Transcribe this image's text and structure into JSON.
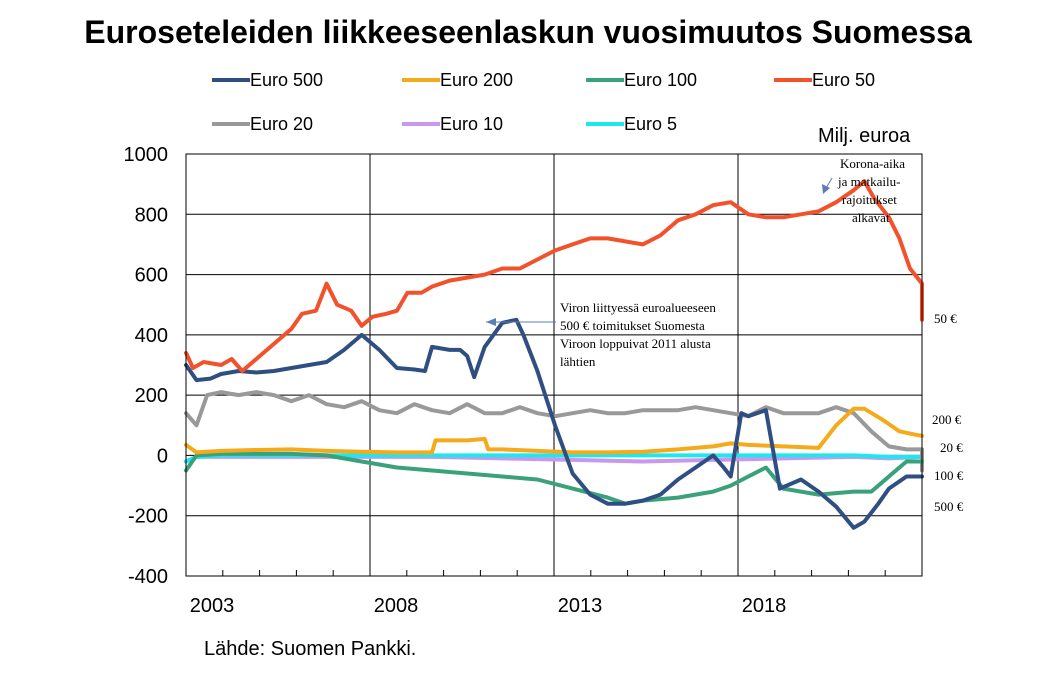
{
  "title": "Euroseteleiden liikkeeseenlaskun vuosimuutos Suomessa",
  "unit_label": "Milj. euroa",
  "source": "Lähde: Suomen Pankki.",
  "annotations": {
    "viro": [
      "Viron liittyessä euroalueeseen",
      "500 € toimitukset Suomesta",
      "Viroon loppuivat 2011 alusta",
      "lähtien"
    ],
    "korona": [
      "Korona-aika",
      "ja matkailu-",
      "rajoitukset",
      "alkavat"
    ]
  },
  "series_end_labels": [
    "50 €",
    "200 €",
    "20 €",
    "100 €",
    "500 €"
  ],
  "chart_data": {
    "type": "line",
    "ylim": [
      -400,
      1000
    ],
    "yticks": [
      -400,
      -200,
      0,
      200,
      400,
      600,
      800,
      1000
    ],
    "xlim": [
      2002.0,
      2022.5
    ],
    "xticks": [
      2003,
      2008,
      2013,
      2018
    ],
    "grid": true,
    "legend_position": "top",
    "series": [
      {
        "name": "Euro 500",
        "color": "#2f4f82",
        "points": [
          [
            2002.0,
            300
          ],
          [
            2002.3,
            250
          ],
          [
            2002.7,
            255
          ],
          [
            2003.0,
            270
          ],
          [
            2003.5,
            280
          ],
          [
            2004.0,
            275
          ],
          [
            2004.5,
            280
          ],
          [
            2005.0,
            290
          ],
          [
            2005.5,
            300
          ],
          [
            2006.0,
            310
          ],
          [
            2006.5,
            350
          ],
          [
            2007.0,
            400
          ],
          [
            2007.5,
            350
          ],
          [
            2008.0,
            290
          ],
          [
            2008.5,
            285
          ],
          [
            2008.8,
            280
          ],
          [
            2009.0,
            360
          ],
          [
            2009.5,
            350
          ],
          [
            2009.8,
            350
          ],
          [
            2010.0,
            330
          ],
          [
            2010.2,
            260
          ],
          [
            2010.5,
            360
          ],
          [
            2011.0,
            440
          ],
          [
            2011.4,
            450
          ],
          [
            2011.6,
            400
          ],
          [
            2012.0,
            280
          ],
          [
            2012.5,
            100
          ],
          [
            2013.0,
            -60
          ],
          [
            2013.5,
            -130
          ],
          [
            2014.0,
            -160
          ],
          [
            2014.5,
            -160
          ],
          [
            2015.0,
            -150
          ],
          [
            2015.5,
            -130
          ],
          [
            2016.0,
            -80
          ],
          [
            2016.5,
            -40
          ],
          [
            2017.0,
            0
          ],
          [
            2017.3,
            -40
          ],
          [
            2017.5,
            -70
          ],
          [
            2017.8,
            140
          ],
          [
            2018.0,
            130
          ],
          [
            2018.5,
            150
          ],
          [
            2018.9,
            -110
          ],
          [
            2019.5,
            -80
          ],
          [
            2020.0,
            -120
          ],
          [
            2020.5,
            -170
          ],
          [
            2021.0,
            -240
          ],
          [
            2021.3,
            -220
          ],
          [
            2021.7,
            -160
          ],
          [
            2022.0,
            -110
          ],
          [
            2022.5,
            -70
          ],
          [
            2023.0,
            -70
          ]
        ]
      },
      {
        "name": "Euro 200",
        "color": "#f5aa1c",
        "points": [
          [
            2002.0,
            35
          ],
          [
            2002.3,
            10
          ],
          [
            2003.0,
            15
          ],
          [
            2004.0,
            18
          ],
          [
            2005.0,
            20
          ],
          [
            2006.0,
            15
          ],
          [
            2007.0,
            12
          ],
          [
            2008.0,
            10
          ],
          [
            2009.0,
            10
          ],
          [
            2009.1,
            50
          ],
          [
            2010.0,
            50
          ],
          [
            2010.5,
            55
          ],
          [
            2010.6,
            20
          ],
          [
            2011.0,
            20
          ],
          [
            2012.0,
            15
          ],
          [
            2013.0,
            10
          ],
          [
            2014.0,
            10
          ],
          [
            2015.0,
            12
          ],
          [
            2016.0,
            20
          ],
          [
            2017.0,
            30
          ],
          [
            2017.5,
            40
          ],
          [
            2018.0,
            35
          ],
          [
            2019.0,
            30
          ],
          [
            2020.0,
            25
          ],
          [
            2020.5,
            100
          ],
          [
            2021.0,
            155
          ],
          [
            2021.3,
            155
          ],
          [
            2021.8,
            120
          ],
          [
            2022.3,
            80
          ],
          [
            2022.7,
            70
          ],
          [
            2023.0,
            65
          ]
        ]
      },
      {
        "name": "Euro 100",
        "color": "#3aa27a",
        "points": [
          [
            2002.0,
            -50
          ],
          [
            2002.3,
            0
          ],
          [
            2003.0,
            5
          ],
          [
            2004.0,
            5
          ],
          [
            2005.0,
            5
          ],
          [
            2006.0,
            0
          ],
          [
            2007.0,
            -20
          ],
          [
            2008.0,
            -40
          ],
          [
            2009.0,
            -50
          ],
          [
            2010.0,
            -60
          ],
          [
            2011.0,
            -70
          ],
          [
            2012.0,
            -80
          ],
          [
            2013.0,
            -110
          ],
          [
            2014.0,
            -140
          ],
          [
            2014.5,
            -160
          ],
          [
            2015.0,
            -150
          ],
          [
            2016.0,
            -140
          ],
          [
            2017.0,
            -120
          ],
          [
            2017.5,
            -100
          ],
          [
            2018.0,
            -70
          ],
          [
            2018.5,
            -40
          ],
          [
            2019.0,
            -110
          ],
          [
            2019.5,
            -120
          ],
          [
            2020.0,
            -130
          ],
          [
            2021.0,
            -120
          ],
          [
            2021.5,
            -120
          ],
          [
            2022.0,
            -70
          ],
          [
            2022.5,
            -20
          ],
          [
            2023.0,
            -20
          ]
        ]
      },
      {
        "name": "Euro 50",
        "color": "#f2522b",
        "points": [
          [
            2002.0,
            340
          ],
          [
            2002.2,
            290
          ],
          [
            2002.5,
            310
          ],
          [
            2003.0,
            300
          ],
          [
            2003.3,
            320
          ],
          [
            2003.6,
            280
          ],
          [
            2004.0,
            320
          ],
          [
            2004.5,
            370
          ],
          [
            2005.0,
            420
          ],
          [
            2005.3,
            470
          ],
          [
            2005.7,
            480
          ],
          [
            2006.0,
            570
          ],
          [
            2006.3,
            500
          ],
          [
            2006.7,
            480
          ],
          [
            2007.0,
            430
          ],
          [
            2007.3,
            460
          ],
          [
            2007.7,
            470
          ],
          [
            2008.0,
            480
          ],
          [
            2008.3,
            540
          ],
          [
            2008.7,
            540
          ],
          [
            2009.0,
            560
          ],
          [
            2009.5,
            580
          ],
          [
            2010.0,
            590
          ],
          [
            2010.5,
            600
          ],
          [
            2011.0,
            620
          ],
          [
            2011.5,
            620
          ],
          [
            2012.0,
            650
          ],
          [
            2012.5,
            680
          ],
          [
            2013.0,
            700
          ],
          [
            2013.5,
            720
          ],
          [
            2014.0,
            720
          ],
          [
            2014.5,
            710
          ],
          [
            2015.0,
            700
          ],
          [
            2015.5,
            730
          ],
          [
            2016.0,
            780
          ],
          [
            2016.5,
            800
          ],
          [
            2017.0,
            830
          ],
          [
            2017.5,
            840
          ],
          [
            2018.0,
            800
          ],
          [
            2018.5,
            790
          ],
          [
            2019.0,
            790
          ],
          [
            2019.5,
            800
          ],
          [
            2020.0,
            810
          ],
          [
            2020.5,
            840
          ],
          [
            2021.0,
            880
          ],
          [
            2021.3,
            910
          ],
          [
            2021.6,
            850
          ],
          [
            2022.0,
            790
          ],
          [
            2022.3,
            720
          ],
          [
            2022.6,
            620
          ],
          [
            2023.0,
            570
          ],
          [
            2023.3,
            500
          ],
          [
            2023.5,
            450
          ],
          [
            2023.8,
            490
          ]
        ]
      },
      {
        "name": "Euro 20",
        "color": "#999999",
        "points": [
          [
            2002.0,
            140
          ],
          [
            2002.3,
            100
          ],
          [
            2002.6,
            200
          ],
          [
            2003.0,
            210
          ],
          [
            2003.5,
            200
          ],
          [
            2004.0,
            210
          ],
          [
            2004.5,
            200
          ],
          [
            2005.0,
            180
          ],
          [
            2005.5,
            200
          ],
          [
            2006.0,
            170
          ],
          [
            2006.5,
            160
          ],
          [
            2007.0,
            180
          ],
          [
            2007.5,
            150
          ],
          [
            2008.0,
            140
          ],
          [
            2008.5,
            170
          ],
          [
            2009.0,
            150
          ],
          [
            2009.5,
            140
          ],
          [
            2010.0,
            170
          ],
          [
            2010.5,
            140
          ],
          [
            2011.0,
            140
          ],
          [
            2011.5,
            160
          ],
          [
            2012.0,
            140
          ],
          [
            2012.5,
            130
          ],
          [
            2013.0,
            140
          ],
          [
            2013.5,
            150
          ],
          [
            2014.0,
            140
          ],
          [
            2014.5,
            140
          ],
          [
            2015.0,
            150
          ],
          [
            2015.5,
            150
          ],
          [
            2016.0,
            150
          ],
          [
            2016.5,
            160
          ],
          [
            2017.0,
            150
          ],
          [
            2017.5,
            140
          ],
          [
            2018.0,
            130
          ],
          [
            2018.5,
            160
          ],
          [
            2019.0,
            140
          ],
          [
            2019.5,
            140
          ],
          [
            2020.0,
            140
          ],
          [
            2020.5,
            160
          ],
          [
            2021.0,
            140
          ],
          [
            2021.5,
            80
          ],
          [
            2022.0,
            30
          ],
          [
            2022.5,
            20
          ],
          [
            2023.0,
            20
          ],
          [
            2023.3,
            -50
          ],
          [
            2023.6,
            -40
          ]
        ]
      },
      {
        "name": "Euro 10",
        "color": "#c897ee",
        "points": [
          [
            2002.0,
            -20
          ],
          [
            2002.3,
            -5
          ],
          [
            2003.0,
            -5
          ],
          [
            2005.0,
            -5
          ],
          [
            2007.0,
            -5
          ],
          [
            2009.0,
            -5
          ],
          [
            2011.0,
            -10
          ],
          [
            2013.0,
            -15
          ],
          [
            2015.0,
            -20
          ],
          [
            2017.0,
            -15
          ],
          [
            2019.0,
            -10
          ],
          [
            2021.0,
            -5
          ],
          [
            2022.0,
            -10
          ],
          [
            2023.0,
            -5
          ]
        ]
      },
      {
        "name": "Euro 5",
        "color": "#1de8f0",
        "points": [
          [
            2002.0,
            -20
          ],
          [
            2002.3,
            -5
          ],
          [
            2003.0,
            0
          ],
          [
            2005.0,
            0
          ],
          [
            2007.0,
            0
          ],
          [
            2009.0,
            0
          ],
          [
            2011.0,
            0
          ],
          [
            2013.0,
            0
          ],
          [
            2015.0,
            0
          ],
          [
            2017.0,
            0
          ],
          [
            2019.0,
            0
          ],
          [
            2021.0,
            0
          ],
          [
            2022.0,
            -5
          ],
          [
            2023.0,
            -5
          ]
        ]
      }
    ]
  }
}
